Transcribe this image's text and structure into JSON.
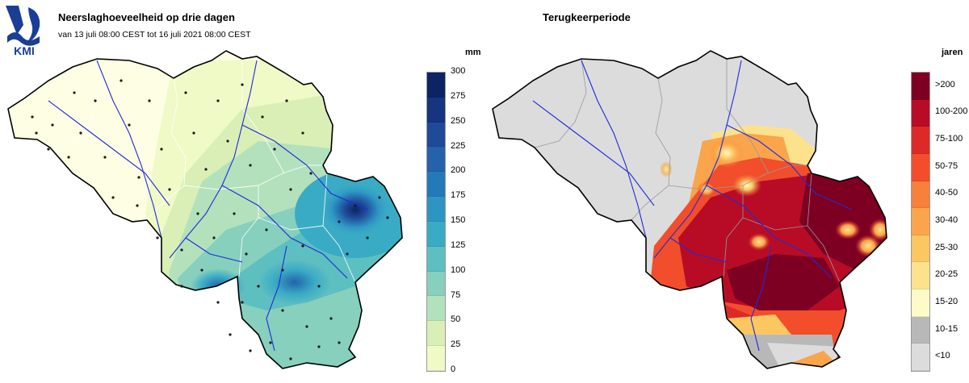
{
  "logo": {
    "text": "KMI",
    "color": "#1a3e96"
  },
  "left": {
    "title": "Neerslaghoeveelheid op drie dagen",
    "subtitle": "van 13 juli 08:00 CEST tot 16 juli 2021 08:00 CEST",
    "unit": "mm",
    "ticks": [
      "300",
      "275",
      "250",
      "225",
      "200",
      "175",
      "150",
      "125",
      "100",
      "75",
      "50",
      "25",
      "0"
    ],
    "colors": [
      "#0b2464",
      "#16347f",
      "#1f4a9a",
      "#2462ab",
      "#247ab8",
      "#2e95c3",
      "#3aabc5",
      "#5dbfc0",
      "#86d0bd",
      "#b3e1bc",
      "#d9efb6",
      "#effac6",
      "#fdfee3"
    ]
  },
  "right": {
    "title": "Terugkeerperiode",
    "unit": "jaren",
    "labels": [
      ">200",
      "100-200",
      "75-100",
      "50-75",
      "40-50",
      "30-40",
      "25-30",
      "20-25",
      "15-20",
      "10-15",
      "<10"
    ],
    "colors": [
      "#7d0022",
      "#b80c26",
      "#dd2a28",
      "#f24e2b",
      "#f7803b",
      "#faa54b",
      "#fcc661",
      "#fde28d",
      "#fefbc8",
      "#b8b8b8",
      "#dcdcdc"
    ]
  },
  "map": {
    "outline_color": "#000000",
    "river_color": "#1f2bd9",
    "boundary_color": "#9a9a9a"
  }
}
